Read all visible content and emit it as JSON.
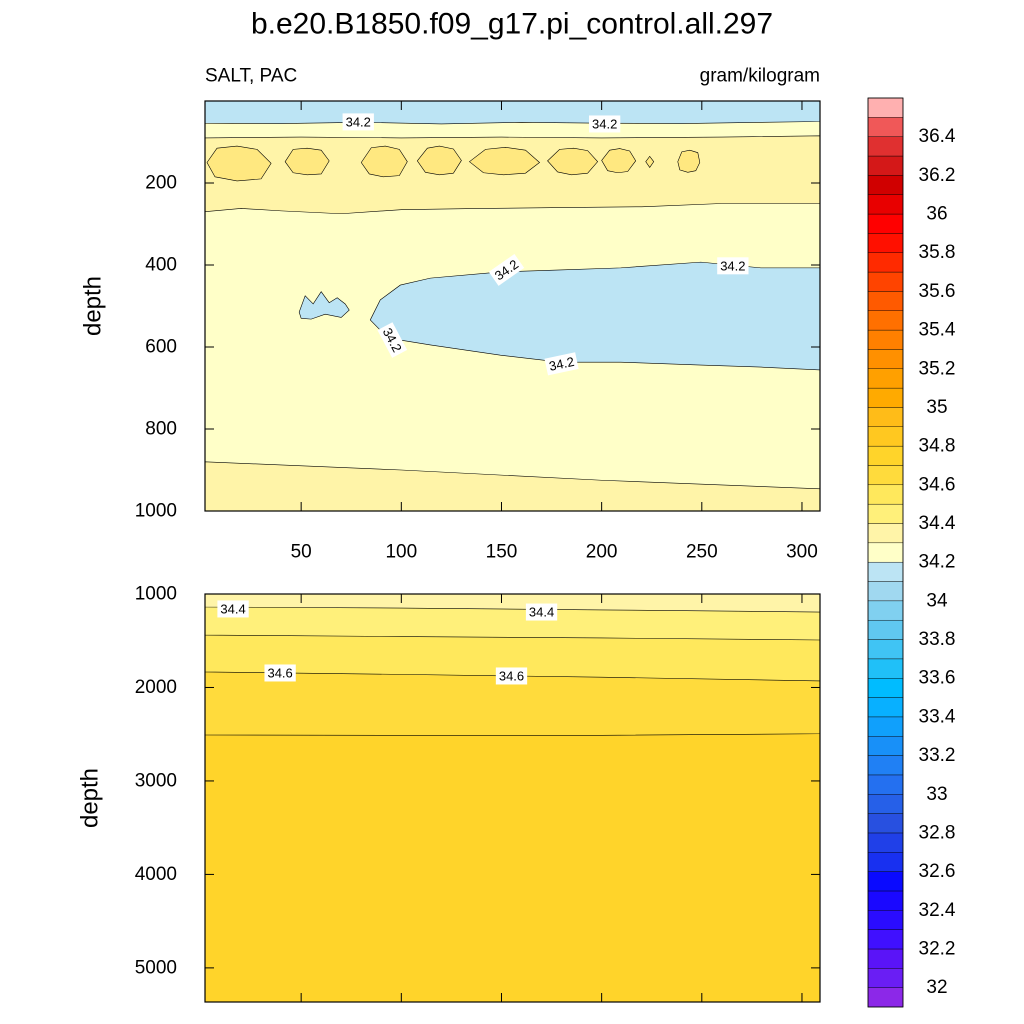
{
  "title": "b.e20.B1850.f09_g17.pi_control.all.297",
  "chart_data": [
    {
      "type": "contour",
      "left_label": "SALT, PAC",
      "right_label": "gram/kilogram",
      "ylabel": "depth",
      "xlim": [
        2,
        309
      ],
      "ylim": [
        1000,
        0
      ],
      "xticks": [
        50,
        100,
        150,
        200,
        250,
        300
      ],
      "yticks": [
        200,
        400,
        600,
        800,
        1000
      ],
      "xtick_labels": true,
      "background": "#ffffc8",
      "regions": [
        {
          "color": "#bce4f4",
          "x": [
            2,
            309,
            309,
            280,
            240,
            200,
            160,
            120,
            80,
            40,
            2
          ],
          "y": [
            0,
            0,
            50,
            52,
            55,
            54,
            52,
            56,
            52,
            55,
            54
          ]
        },
        {
          "color": "#fff4a8",
          "x": [
            2,
            50,
            100,
            150,
            200,
            260,
            309,
            309,
            260,
            220,
            180,
            140,
            100,
            70,
            40,
            20,
            2
          ],
          "y": [
            90,
            88,
            90,
            88,
            90,
            88,
            85,
            250,
            250,
            258,
            260,
            262,
            265,
            275,
            268,
            262,
            270
          ]
        },
        {
          "color": "#ffe880",
          "x": [
            3,
            8,
            18,
            28,
            35,
            30,
            18,
            7
          ],
          "y": [
            150,
            115,
            110,
            118,
            152,
            190,
            195,
            185
          ]
        },
        {
          "color": "#ffe880",
          "x": [
            42,
            46,
            53,
            60,
            64,
            60,
            53,
            46
          ],
          "y": [
            148,
            118,
            115,
            120,
            146,
            178,
            180,
            175
          ]
        },
        {
          "color": "#ffe880",
          "x": [
            80,
            85,
            92,
            99,
            103,
            99,
            91,
            84
          ],
          "y": [
            150,
            114,
            110,
            118,
            148,
            182,
            185,
            178
          ]
        },
        {
          "color": "#ffe880",
          "x": [
            108,
            113,
            119,
            126,
            130,
            126,
            119,
            112
          ],
          "y": [
            146,
            115,
            110,
            117,
            145,
            176,
            180,
            174
          ]
        },
        {
          "color": "#ffe880",
          "x": [
            134,
            142,
            152,
            162,
            169,
            162,
            151,
            141
          ],
          "y": [
            148,
            118,
            113,
            120,
            150,
            176,
            180,
            175
          ]
        },
        {
          "color": "#ffe880",
          "x": [
            173,
            179,
            186,
            193,
            198,
            193,
            185,
            178
          ],
          "y": [
            146,
            118,
            115,
            121,
            148,
            176,
            180,
            173
          ]
        },
        {
          "color": "#ffe880",
          "x": [
            200,
            204,
            209,
            214,
            217,
            213,
            208,
            203
          ],
          "y": [
            145,
            120,
            116,
            122,
            146,
            172,
            175,
            170
          ]
        },
        {
          "color": "#ffe880",
          "x": [
            238,
            240,
            244,
            248,
            249,
            247,
            243,
            239
          ],
          "y": [
            148,
            124,
            120,
            126,
            150,
            170,
            174,
            168
          ]
        },
        {
          "color": "#ffe880",
          "x": [
            222,
            224,
            226,
            224
          ],
          "y": [
            148,
            135,
            148,
            162
          ]
        },
        {
          "color": "#bce4f4",
          "x": [
            84.5,
            89.5,
            99.5,
            114.5,
            149.5,
            179.5,
            209.5,
            249.5,
            279.5,
            309,
            309,
            279.5,
            249.5,
            209.5,
            179.5,
            149.5,
            114.5,
            99.5,
            89.5
          ],
          "y": [
            534,
            485,
            449,
            432,
            417,
            412,
            407,
            393,
            407,
            407,
            656,
            649,
            644,
            637,
            637,
            620,
            595,
            583,
            559
          ]
        },
        {
          "color": "#bce4f4",
          "x": [
            49,
            52,
            56,
            60,
            64,
            68,
            72,
            74,
            70,
            62,
            55,
            50
          ],
          "y": [
            515,
            475,
            495,
            465,
            492,
            480,
            495,
            510,
            528,
            520,
            532,
            530
          ]
        },
        {
          "color": "#fff4a8",
          "x": [
            2,
            100,
            200,
            309,
            309,
            2
          ],
          "y": [
            880,
            900,
            925,
            946,
            1000,
            1000
          ]
        }
      ],
      "contour_labels": [
        {
          "value": 34.2,
          "x": 78.5,
          "y": 51,
          "angle": 0
        },
        {
          "value": 34.2,
          "x": 201.5,
          "y": 56,
          "angle": 0
        },
        {
          "value": 34.2,
          "x": 152.5,
          "y": 412,
          "angle": -35
        },
        {
          "value": 34.2,
          "x": 265.5,
          "y": 402,
          "angle": 0
        },
        {
          "value": 34.2,
          "x": 95.5,
          "y": 583,
          "angle": 62
        },
        {
          "value": 34.2,
          "x": 180,
          "y": 641,
          "angle": -12
        }
      ]
    },
    {
      "type": "contour",
      "ylabel": "depth",
      "xlim": [
        2,
        309
      ],
      "ylim": [
        5365,
        1000
      ],
      "xticks": [
        50,
        100,
        150,
        200,
        250,
        300
      ],
      "yticks": [
        1000,
        2000,
        3000,
        4000,
        5000
      ],
      "xtick_labels": false,
      "background": "#ffd42a",
      "regions": [
        {
          "color": "#ffdb3c",
          "x": [
            2,
            309,
            309,
            200,
            100,
            2
          ],
          "y": [
            1000,
            1000,
            2495,
            2512,
            2512,
            2508
          ]
        },
        {
          "color": "#ffe85c",
          "x": [
            2,
            309,
            309,
            200,
            100,
            2
          ],
          "y": [
            1000,
            1000,
            1930,
            1890,
            1860,
            1834
          ]
        },
        {
          "color": "#fff07a",
          "x": [
            2,
            309,
            309,
            200,
            100,
            2
          ],
          "y": [
            1000,
            1000,
            1492,
            1470,
            1455,
            1439
          ]
        },
        {
          "color": "#fff4a8",
          "x": [
            2,
            309,
            309,
            200,
            100,
            2
          ],
          "y": [
            1000,
            1000,
            1193,
            1170,
            1150,
            1139
          ]
        }
      ],
      "contour_labels": [
        {
          "value": 34.4,
          "x": 16,
          "y": 1160,
          "angle": 0
        },
        {
          "value": 34.4,
          "x": 170,
          "y": 1193,
          "angle": 0
        },
        {
          "value": 34.6,
          "x": 39.5,
          "y": 1845,
          "angle": 0
        },
        {
          "value": 34.6,
          "x": 155,
          "y": 1877,
          "angle": 0
        }
      ]
    },
    {
      "type": "colorbar",
      "lim": [
        31.9,
        36.6
      ],
      "levels": [
        32,
        32.1,
        32.2,
        32.3,
        32.4,
        32.5,
        32.6,
        32.7,
        32.8,
        32.9,
        33,
        33.1,
        33.2,
        33.3,
        33.4,
        33.5,
        33.6,
        33.7,
        33.8,
        33.9,
        34,
        34.1,
        34.2,
        34.3,
        34.4,
        34.5,
        34.6,
        34.7,
        34.8,
        34.9,
        35,
        35.1,
        35.2,
        35.3,
        35.4,
        35.5,
        35.6,
        35.7,
        35.8,
        35.9,
        36,
        36.1,
        36.2,
        36.3,
        36.4,
        36.5
      ],
      "colors": [
        "#8c28e8",
        "#6a1ef4",
        "#5a14f8",
        "#4010ff",
        "#2a0cff",
        "#1a08ff",
        "#0a0aff",
        "#1830f0",
        "#2040e8",
        "#2850e0",
        "#2660e8",
        "#2470f0",
        "#2080f4",
        "#1890f8",
        "#10a0fc",
        "#08b0ff",
        "#00bcff",
        "#20c0f8",
        "#40c4f4",
        "#60c8f0",
        "#80d0f0",
        "#a0d8f0",
        "#bce4f4",
        "#ffffc8",
        "#fff4a8",
        "#fff07a",
        "#ffe85c",
        "#ffdb3c",
        "#ffd42a",
        "#ffc820",
        "#ffbc18",
        "#ffaa00",
        "#ffa000",
        "#ff9000",
        "#ff8000",
        "#ff7000",
        "#ff5a00",
        "#ff4400",
        "#ff2a00",
        "#ff1000",
        "#ff0000",
        "#e80000",
        "#d00000",
        "#d41818",
        "#e03030",
        "#f05858",
        "#ffb0b0"
      ],
      "ticks": [
        32,
        32.2,
        32.4,
        32.6,
        32.8,
        33,
        33.2,
        33.4,
        33.6,
        33.8,
        34,
        34.2,
        34.4,
        34.6,
        34.8,
        35,
        35.2,
        35.4,
        35.6,
        35.8,
        36,
        36.2,
        36.4
      ]
    }
  ]
}
